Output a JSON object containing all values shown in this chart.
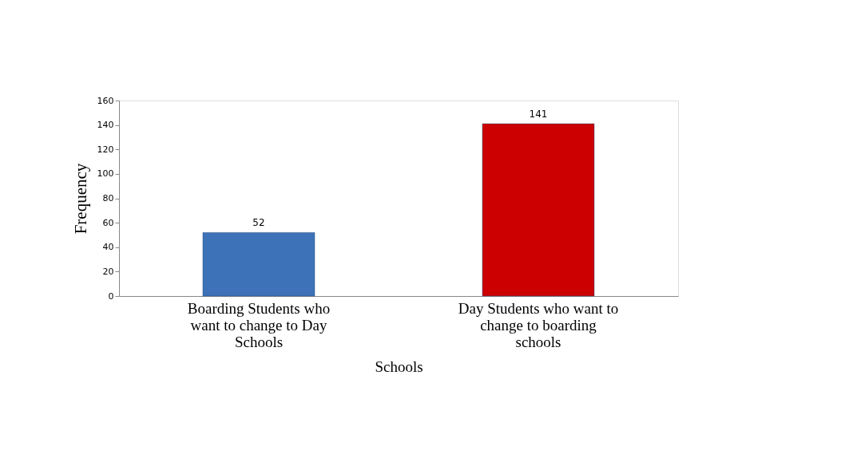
{
  "chart_data": {
    "type": "bar",
    "categories": [
      "Boarding Students who want to change to Day Schools",
      "Day Students who want to change to boarding schools"
    ],
    "values": [
      52,
      141
    ],
    "colors": [
      "#3d72b8",
      "#cc0000"
    ],
    "xlabel": "Schools",
    "ylabel": "Frequency",
    "ylim": [
      0,
      160
    ],
    "yticks": [
      0,
      20,
      40,
      60,
      80,
      100,
      120,
      140,
      160
    ],
    "data_labels": true,
    "grid": false,
    "legend": false
  }
}
